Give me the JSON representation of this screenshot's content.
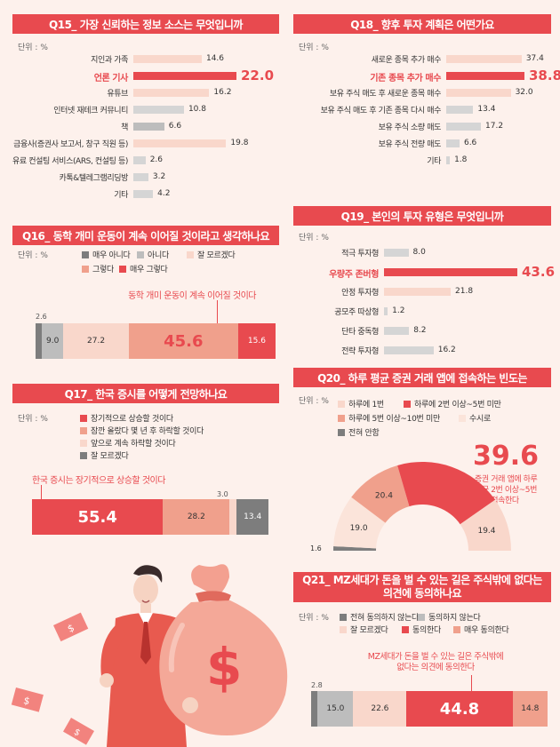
{
  "colors": {
    "accent": "#e84a4f",
    "strong": "#ef5a5f",
    "mid": "#f0a08c",
    "light": "#f9d7cb",
    "gray": "#bdbdbd",
    "dark_gray": "#7d7d7d",
    "bg": "#fdf1ec"
  },
  "q15": {
    "title": "Q15_ 가장 신뢰하는 정보 소스는 무엇입니까",
    "unit": "단위 : %"
  },
  "q18": {
    "title": "Q18_ 향후 투자 계획은 어떤가요",
    "unit": "단위 : %"
  },
  "q16": {
    "title": "Q16_ 동학 개미 운동이 계속 이어질 것이라고 생각하나요",
    "unit": "단위 : %",
    "callout": "동학 개미 운동이 계속 이어질 것이다"
  },
  "q19": {
    "title": "Q19_ 본인의 투자 유형은 무엇입니까",
    "unit": "단위 : %"
  },
  "q17": {
    "title": "Q17_ 한국 증시를 어떻게 전망하나요",
    "unit": "단위 : %",
    "callout": "한국 증시는 장기적으로 상승할 것이다"
  },
  "q20": {
    "title": "Q20_ 하루 평균 증권 거래 앱에 접속하는 빈도는",
    "unit": "단위 : %",
    "big_value": "39.6",
    "big_caption_1": "증권 거래 앱에 하루",
    "big_caption_2": "평균 2번 이상~5번",
    "big_caption_3": "미만 접속한다"
  },
  "q21": {
    "title_1": "Q21_ MZ세대가 돈을 벌 수 있는 길은 주식밖에 없다는",
    "title_2": "의견에 동의하나요",
    "unit": "단위 : %",
    "callout_1": "MZ세대가 돈을 벌 수 있는 길은 주식밖에",
    "callout_2": "없다는 의견에 동의한다"
  },
  "chart_data": [
    {
      "id": "q15",
      "type": "bar",
      "title": "Q15_ 가장 신뢰하는 정보 소스는 무엇입니까",
      "categories": [
        "지인과 가족",
        "언론 기사",
        "유튜브",
        "인터넷 재테크 커뮤니티",
        "책",
        "금융사(증권사 보고서, 창구 직원 등)",
        "유료 컨설팅 서비스(ARS, 컨설팅 등)",
        "카톡&텔레그램리딩방",
        "기타"
      ],
      "values": [
        14.6,
        22.0,
        16.2,
        10.8,
        6.6,
        19.8,
        2.6,
        3.2,
        4.2
      ],
      "highlight_index": 1,
      "xlim": [
        0,
        22
      ]
    },
    {
      "id": "q18",
      "type": "bar",
      "title": "Q18_ 향후 투자 계획은 어떤가요",
      "categories": [
        "새로운 종목 추가 매수",
        "기존 종목 추가 매수",
        "보유 주식 매도 후 새로운 종목 매수",
        "보유 주식 매도 후 기존 종목 다시 매수",
        "보유 주식 소량 매도",
        "보유 주식 전량 매도",
        "기타"
      ],
      "values": [
        37.4,
        38.8,
        32.0,
        13.4,
        17.2,
        6.6,
        1.8
      ],
      "highlight_index": 1,
      "xlim": [
        0,
        38.8
      ]
    },
    {
      "id": "q19",
      "type": "bar",
      "title": "Q19_ 본인의 투자 유형은 무엇입니까",
      "categories": [
        "적극 투자형",
        "우량주 존버형",
        "안정 투자형",
        "공모주 따상형",
        "단타 중독형",
        "전략 투자형"
      ],
      "values": [
        8.0,
        43.6,
        21.8,
        1.2,
        8.2,
        16.2
      ],
      "highlight_index": 1,
      "xlim": [
        0,
        43.6
      ]
    },
    {
      "id": "q16",
      "type": "bar",
      "stacked": true,
      "title": "Q16_ 동학 개미 운동이 계속 이어질 것이라고 생각하나요",
      "series": [
        {
          "name": "매우 아니다",
          "values": [
            2.6
          ]
        },
        {
          "name": "아니다",
          "values": [
            9.0
          ]
        },
        {
          "name": "잘 모르겠다",
          "values": [
            27.2
          ]
        },
        {
          "name": "그렇다",
          "values": [
            45.6
          ]
        },
        {
          "name": "매우 그렇다",
          "values": [
            15.6
          ]
        }
      ]
    },
    {
      "id": "q17",
      "type": "bar",
      "stacked": true,
      "title": "Q17_ 한국 증시를 어떻게 전망하나요",
      "series": [
        {
          "name": "장기적으로 상승할 것이다",
          "values": [
            55.4
          ]
        },
        {
          "name": "잠깐 올랐다 몇 년 후 하락할 것이다",
          "values": [
            28.2
          ]
        },
        {
          "name": "앞으로 계속 하락할 것이다",
          "values": [
            3.0
          ]
        },
        {
          "name": "잘 모르겠다",
          "values": [
            13.4
          ]
        }
      ]
    },
    {
      "id": "q20",
      "type": "pie",
      "title": "Q20_ 하루 평균 증권 거래 앱에 접속하는 빈도는",
      "categories": [
        "하루에 1번",
        "하루에 2번 이상~5번 미만",
        "하루에 5번 이상~10번 미만",
        "수시로",
        "전혀 안함"
      ],
      "values": [
        19.4,
        39.6,
        20.4,
        19.0,
        1.6
      ]
    },
    {
      "id": "q21",
      "type": "bar",
      "stacked": true,
      "title": "Q21_ MZ세대가 돈을 벌 수 있는 길은 주식밖에 없다는 의견에 동의하나요",
      "series": [
        {
          "name": "전혀 동의하지 않는다",
          "values": [
            2.8
          ]
        },
        {
          "name": "동의하지 않는다",
          "values": [
            15.0
          ]
        },
        {
          "name": "잘 모르겠다",
          "values": [
            22.6
          ]
        },
        {
          "name": "동의한다",
          "values": [
            44.8
          ]
        },
        {
          "name": "매우 동의한다",
          "values": [
            14.8
          ]
        }
      ]
    }
  ]
}
